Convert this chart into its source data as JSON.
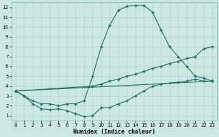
{
  "xlabel": "Humidex (Indice chaleur)",
  "bg_color": "#cce8e4",
  "line_color": "#1a6b5a",
  "grid_color": "#aaccc8",
  "xlim": [
    -0.5,
    23.5
  ],
  "ylim": [
    0.5,
    12.5
  ],
  "xticks": [
    0,
    1,
    2,
    3,
    4,
    5,
    6,
    7,
    8,
    9,
    10,
    11,
    12,
    13,
    14,
    15,
    16,
    17,
    18,
    19,
    20,
    21,
    22,
    23
  ],
  "yticks": [
    1,
    2,
    3,
    4,
    5,
    6,
    7,
    8,
    9,
    10,
    11,
    12
  ],
  "curve_bell_x": [
    0,
    1,
    2,
    3,
    4,
    5,
    6,
    7,
    8,
    9,
    10,
    11,
    12,
    13,
    14,
    15,
    16,
    17,
    18,
    19,
    20,
    21,
    22,
    23
  ],
  "curve_bell_y": [
    3.5,
    3.0,
    2.5,
    2.2,
    2.2,
    2.0,
    2.2,
    2.2,
    2.5,
    5.0,
    8.0,
    10.2,
    11.7,
    12.1,
    12.2,
    12.2,
    11.5,
    9.7,
    8.0,
    7.0,
    6.0,
    5.0,
    4.8,
    4.5
  ],
  "curve_low_x": [
    0,
    1,
    2,
    3,
    4,
    5,
    6,
    7,
    8,
    9,
    10,
    11,
    12,
    13,
    14,
    15,
    16,
    17,
    18,
    19,
    20,
    21,
    22,
    23
  ],
  "curve_low_y": [
    3.5,
    3.0,
    2.2,
    1.7,
    1.6,
    1.7,
    1.5,
    1.2,
    0.9,
    1.0,
    1.8,
    1.8,
    2.2,
    2.5,
    3.0,
    3.5,
    4.0,
    4.2,
    4.3,
    4.4,
    4.5,
    4.7,
    4.5,
    4.5
  ],
  "curve_upper_trend_x": [
    0,
    9,
    10,
    11,
    12,
    13,
    14,
    15,
    16,
    17,
    18,
    19,
    20,
    21,
    22,
    23
  ],
  "curve_upper_trend_y": [
    3.5,
    4.0,
    4.2,
    4.5,
    4.7,
    5.0,
    5.2,
    5.5,
    5.8,
    6.0,
    6.3,
    6.5,
    6.8,
    7.0,
    7.8,
    8.0
  ],
  "curve_lower_trend_x": [
    0,
    23
  ],
  "curve_lower_trend_y": [
    3.5,
    4.5
  ]
}
